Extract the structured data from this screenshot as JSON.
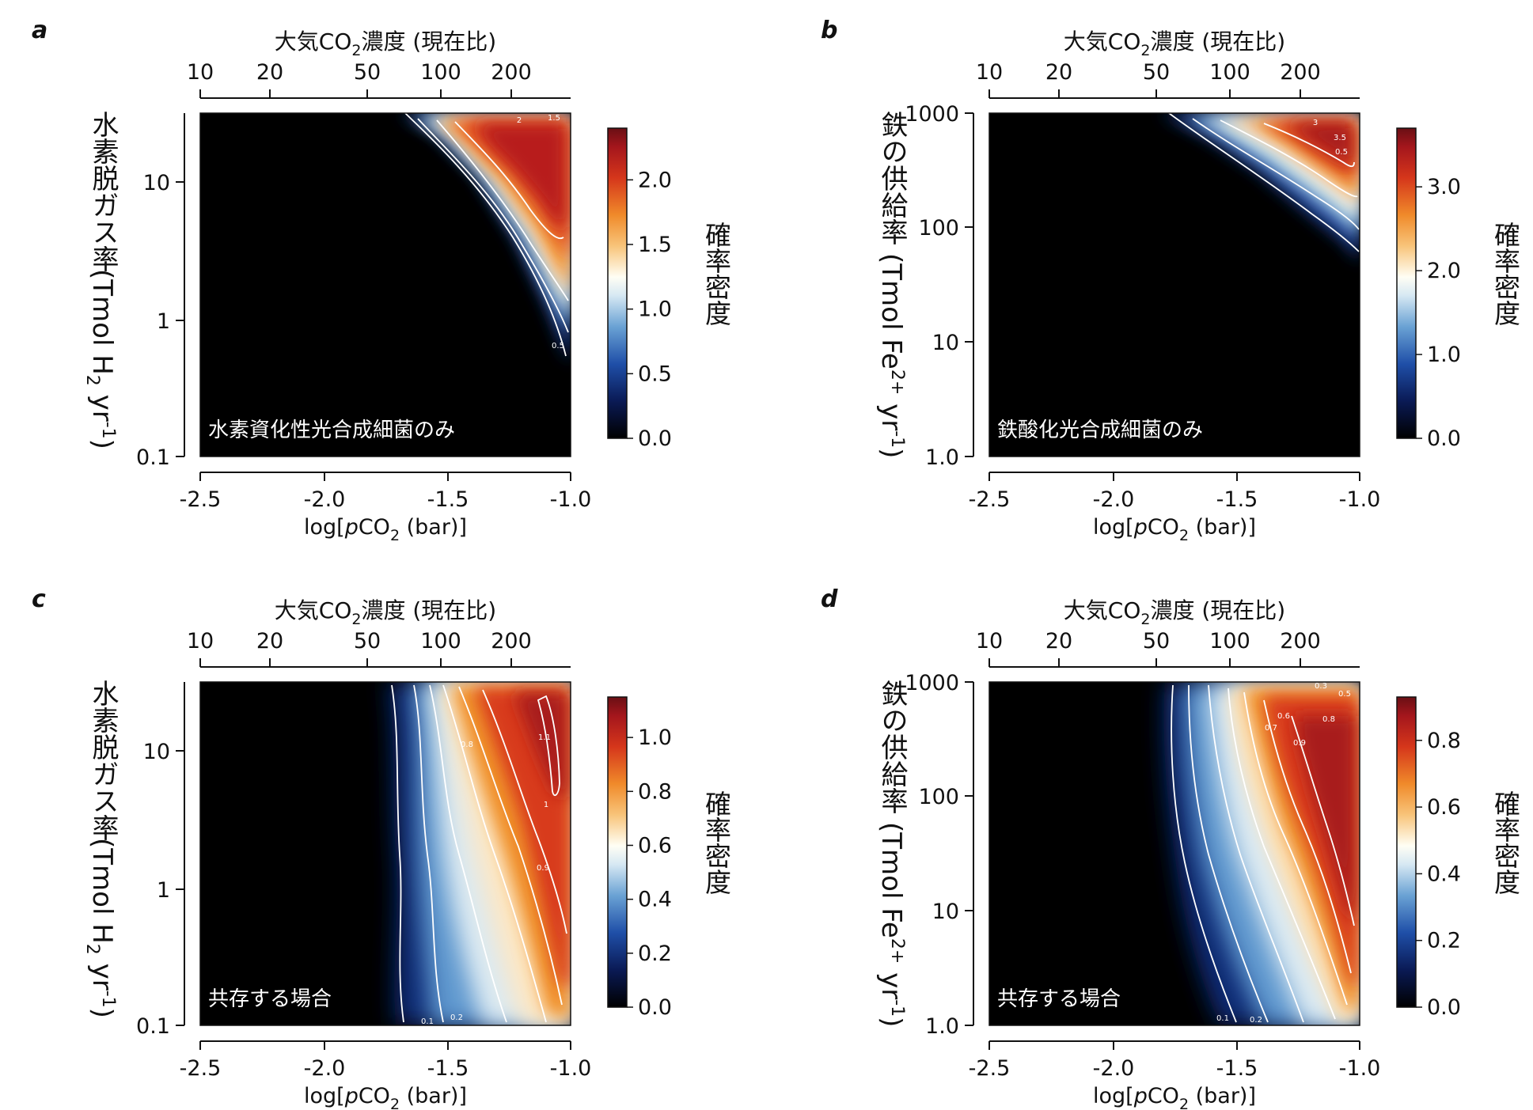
{
  "chart_data": [
    {
      "panel": "a",
      "type": "heatmap",
      "top_axis": {
        "title": "大気CO",
        "title_sub": "2",
        "title_end": "濃度 (現在比)",
        "ticks": [
          "10",
          "20",
          "50",
          "100",
          "200"
        ]
      },
      "x": {
        "label_pre": "log[",
        "label_italic": "p",
        "label_mid": "CO",
        "label_sub": "2",
        "label_post": " (bar)]",
        "ticks": [
          "-2.5",
          "-2.0",
          "-1.5",
          "-1.0"
        ],
        "range": [
          -2.5,
          -1.0
        ]
      },
      "y": {
        "scale": "log",
        "ticks": [
          "10",
          "1",
          "0.1"
        ],
        "range": [
          0.1,
          30
        ],
        "label_main": "水素脱ガス率",
        "label_unit_pre": "(Tmol H",
        "label_unit_sub": "2",
        "label_unit_post": " yr",
        "label_unit_sup": "-1",
        "label_unit_end": ")"
      },
      "colorbar": {
        "label": "確率密度",
        "ticks": [
          "0.0",
          "0.5",
          "1.0",
          "1.5",
          "2.0"
        ],
        "max": 2.4
      },
      "inset_label": "水素資化性光合成細菌のみ",
      "contour_labels": [
        "2",
        "1.5",
        "0.5"
      ],
      "peak_density": 2.3
    },
    {
      "panel": "b",
      "type": "heatmap",
      "top_axis": {
        "title": "大気CO",
        "title_sub": "2",
        "title_end": "濃度 (現在比)",
        "ticks": [
          "10",
          "20",
          "50",
          "100",
          "200"
        ]
      },
      "x": {
        "label_pre": "log[",
        "label_italic": "p",
        "label_mid": "CO",
        "label_sub": "2",
        "label_post": " (bar)]",
        "ticks": [
          "-2.5",
          "-2.0",
          "-1.5",
          "-1.0"
        ],
        "range": [
          -2.5,
          -1.0
        ]
      },
      "y": {
        "scale": "log",
        "ticks": [
          "1000",
          "100",
          "10",
          "1.0"
        ],
        "range": [
          1.0,
          1000
        ],
        "label_main": "鉄の供給率",
        "label_unit_pre": "(Tmol Fe",
        "label_unit_sup1": "2+",
        "label_unit_post": " yr",
        "label_unit_sup": "-1",
        "label_unit_end": ")"
      },
      "colorbar": {
        "label": "確率密度",
        "ticks": [
          "0.0",
          "1.0",
          "2.0",
          "3.0"
        ],
        "max": 3.7
      },
      "inset_label": "鉄酸化光合成細菌のみ",
      "contour_labels": [
        "3.5",
        "3",
        "0.5"
      ],
      "peak_density": 3.6
    },
    {
      "panel": "c",
      "type": "heatmap",
      "top_axis": {
        "title": "大気CO",
        "title_sub": "2",
        "title_end": "濃度 (現在比)",
        "ticks": [
          "10",
          "20",
          "50",
          "100",
          "200"
        ]
      },
      "x": {
        "label_pre": "log[",
        "label_italic": "p",
        "label_mid": "CO",
        "label_sub": "2",
        "label_post": " (bar)]",
        "ticks": [
          "-2.5",
          "-2.0",
          "-1.5",
          "-1.0"
        ],
        "range": [
          -2.5,
          -1.0
        ]
      },
      "y": {
        "scale": "log",
        "ticks": [
          "10",
          "1",
          "0.1"
        ],
        "range": [
          0.1,
          30
        ],
        "label_main": "水素脱ガス率",
        "label_unit_pre": "(Tmol H",
        "label_unit_sub": "2",
        "label_unit_post": " yr",
        "label_unit_sup": "-1",
        "label_unit_end": ")"
      },
      "colorbar": {
        "label": "確率密度",
        "ticks": [
          "0.0",
          "0.2",
          "0.4",
          "0.6",
          "0.8",
          "1.0"
        ],
        "max": 1.15
      },
      "inset_label": "共存する場合",
      "contour_labels": [
        "1.1",
        "1",
        "0.9",
        "0.8",
        "0.2",
        "0.1"
      ],
      "peak_density": 1.12
    },
    {
      "panel": "d",
      "type": "heatmap",
      "top_axis": {
        "title": "大気CO",
        "title_sub": "2",
        "title_end": "濃度 (現在比)",
        "ticks": [
          "10",
          "20",
          "50",
          "100",
          "200"
        ]
      },
      "x": {
        "label_pre": "log[",
        "label_italic": "p",
        "label_mid": "CO",
        "label_sub": "2",
        "label_post": " (bar)]",
        "ticks": [
          "-2.5",
          "-2.0",
          "-1.5",
          "-1.0"
        ],
        "range": [
          -2.5,
          -1.0
        ]
      },
      "y": {
        "scale": "log",
        "ticks": [
          "1000",
          "100",
          "10",
          "1.0"
        ],
        "range": [
          1.0,
          1000
        ],
        "label_main": "鉄の供給率",
        "label_unit_pre": "(Tmol Fe",
        "label_unit_sup1": "2+",
        "label_unit_post": " yr",
        "label_unit_sup": "-1",
        "label_unit_end": ")"
      },
      "colorbar": {
        "label": "確率密度",
        "ticks": [
          "0.0",
          "0.2",
          "0.4",
          "0.6",
          "0.8"
        ],
        "max": 0.93
      },
      "inset_label": "共存する場合",
      "contour_labels": [
        "0.9",
        "0.8",
        "0.7",
        "0.6",
        "0.5",
        "0.3",
        "0.2",
        "0.1"
      ],
      "peak_density": 0.92
    }
  ]
}
